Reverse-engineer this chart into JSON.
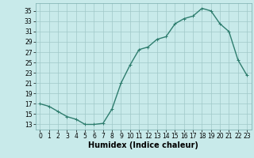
{
  "x": [
    0,
    1,
    2,
    3,
    4,
    5,
    6,
    7,
    8,
    9,
    10,
    11,
    12,
    13,
    14,
    15,
    16,
    17,
    18,
    19,
    20,
    21,
    22,
    23
  ],
  "y": [
    17,
    16.5,
    15.5,
    14.5,
    14,
    13,
    13,
    13.2,
    16,
    21,
    24.5,
    27.5,
    28,
    29.5,
    30,
    32.5,
    33.5,
    34,
    35.5,
    35,
    32.5,
    31,
    25.5,
    22.5
  ],
  "line_color": "#2e7d6e",
  "marker": "+",
  "bg_color": "#c8eaea",
  "grid_major_color": "#a0c8c8",
  "grid_minor_color": "#b8dede",
  "xlabel": "Humidex (Indice chaleur)",
  "xlim": [
    -0.5,
    23.5
  ],
  "ylim": [
    12,
    36.5
  ],
  "yticks": [
    13,
    15,
    17,
    19,
    21,
    23,
    25,
    27,
    29,
    31,
    33,
    35
  ],
  "xticks": [
    0,
    1,
    2,
    3,
    4,
    5,
    6,
    7,
    8,
    9,
    10,
    11,
    12,
    13,
    14,
    15,
    16,
    17,
    18,
    19,
    20,
    21,
    22,
    23
  ],
  "tick_fontsize": 5.5,
  "xlabel_fontsize": 7,
  "linewidth": 1.0,
  "markersize": 3.5,
  "markeredgewidth": 0.7
}
